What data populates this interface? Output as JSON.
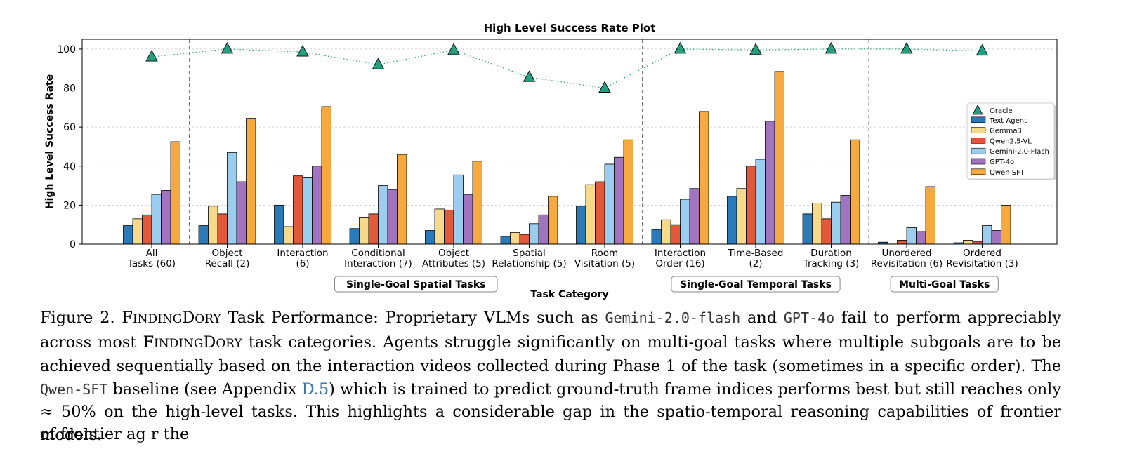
{
  "chart_data": {
    "type": "bar",
    "title": "High Level Success Rate Plot",
    "xlabel": "Task Category",
    "ylabel": "High Level Success Rate",
    "ylim": [
      0,
      105
    ],
    "yticks": [
      0,
      20,
      40,
      60,
      80,
      100
    ],
    "grid": true,
    "legend_position": "center-right",
    "categories": [
      [
        "All",
        "Tasks (60)"
      ],
      [
        "Object",
        "Recall (2)"
      ],
      [
        "Interaction",
        "(6)"
      ],
      [
        "Conditional",
        "Interaction (7)"
      ],
      [
        "Object",
        "Attributes (5)"
      ],
      [
        "Spatial",
        "Relationship (5)"
      ],
      [
        "Room",
        "Visitation (5)"
      ],
      [
        "Interaction",
        "Order (16)"
      ],
      [
        "Time-Based",
        "(2)"
      ],
      [
        "Duration",
        "Tracking (3)"
      ],
      [
        "Unordered",
        "Revisitation (6)"
      ],
      [
        "Ordered",
        "Revisitation (3)"
      ]
    ],
    "oracle": {
      "name": "Oracle",
      "color": "#22a07f",
      "values": [
        96,
        100,
        98.5,
        92,
        99.5,
        85.5,
        80,
        100,
        99.5,
        100,
        100,
        99
      ]
    },
    "series": [
      {
        "name": "Text Agent",
        "color": "#2a7ab9",
        "values": [
          9.5,
          9.5,
          20,
          8,
          7,
          4,
          19.5,
          7.5,
          24.5,
          15.5,
          1,
          0.7
        ]
      },
      {
        "name": "Gemma3",
        "color": "#f7d98a",
        "values": [
          13,
          19.5,
          9,
          13.5,
          18,
          6,
          30.5,
          12.5,
          28.5,
          21,
          0.5,
          2
        ]
      },
      {
        "name": "Qwen2.5-VL",
        "color": "#e2583b",
        "values": [
          15,
          15.5,
          35,
          15.5,
          17.5,
          5,
          32,
          10,
          40,
          13,
          2,
          1.2
        ]
      },
      {
        "name": "Gemini-2.0-Flash",
        "color": "#9bcdee",
        "values": [
          25.5,
          47,
          34,
          30,
          35.5,
          10.5,
          41,
          23,
          43.5,
          21.5,
          8.5,
          9.5
        ]
      },
      {
        "name": "GPT-4o",
        "color": "#a274c0",
        "values": [
          27.5,
          32,
          40,
          28,
          25.5,
          15,
          44.5,
          28.5,
          63,
          25,
          6.5,
          7
        ]
      },
      {
        "name": "Qwen SFT",
        "color": "#f5a93e",
        "values": [
          52.5,
          64.5,
          70.5,
          46,
          42.5,
          24.5,
          53.5,
          68,
          88.5,
          53.5,
          29.5,
          20
        ]
      }
    ],
    "groups": [
      {
        "label": "Single-Goal Spatial Tasks",
        "from": 1,
        "to": 6
      },
      {
        "label": "Single-Goal Temporal Tasks",
        "from": 7,
        "to": 9
      },
      {
        "label": "Multi-Goal Tasks",
        "from": 10,
        "to": 11
      }
    ],
    "separators_after": [
      0,
      6,
      9
    ]
  },
  "caption": {
    "fig": "Figure 2. F",
    "s1": "INDING",
    "s2": "D",
    "s3": "ORY",
    "p1": " Task Performance: Proprietary VLMs such as ",
    "m1": "Gemini-2.0-flash",
    "p2": " and ",
    "m2": "GPT-4o",
    "p3": " fail to perform appreciably across most F",
    "s4": "INDING",
    "s5": "D",
    "s6": "ORY",
    "p4": " task categories. Agents struggle significantly on multi-goal tasks where multiple subgoals are to be achieved sequentially based on the interaction videos collected during Phase 1 of the task (sometimes in a specific order). The ",
    "m3": "Qwen-SFT",
    "p5": " baseline (see Appendix ",
    "link": "D.5",
    "p6": ") which is trained to predict ground-truth frame indices performs best but still reaches only ≈ 50% on the high-level tasks. This highlights a considerable gap in the spatio-temporal reasoning capabilities of frontier models."
  },
  "next_line": "of frontier ag                         r                         the                                               "
}
